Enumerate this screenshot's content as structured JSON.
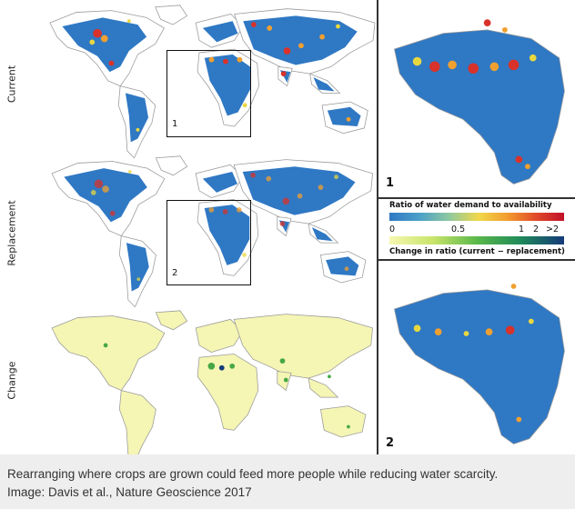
{
  "rows": {
    "current": "Current",
    "replacement": "Replacement",
    "change": "Change"
  },
  "zoom_labels": {
    "box1": "1",
    "box2": "2"
  },
  "insets": {
    "inset1": "1",
    "inset2": "2"
  },
  "legend": {
    "ratio_title": "Ratio of water demand to availability",
    "ratio_ticks": [
      "0",
      "0.5",
      "1",
      "2",
      ">2"
    ],
    "ratio_colors": [
      "#2f78c4",
      "#4aa0c8",
      "#8dc8a0",
      "#f0d84a",
      "#f29a2e",
      "#e04a2a",
      "#c0102a"
    ],
    "change_title": "Change in ratio (current − replacement)",
    "change_colors": [
      "#f7f7b0",
      "#c8e46a",
      "#5ab84a",
      "#1f8a5a",
      "#153a7a"
    ]
  },
  "map_colors": {
    "land_outline": "#9a9a9a",
    "water_ratio_land": "#2f78c4",
    "hotspot_red": "#d8322a",
    "hotspot_orange": "#f0a030",
    "hotspot_yellow": "#e8d840",
    "change_land": "#f5f5b4",
    "change_green": "#46a844",
    "change_dark": "#153a7a"
  },
  "caption": {
    "line1": "Rearranging where crops are grown could feed more people while reducing water scarcity.",
    "line2": "Image: Davis et al., Nature Geoscience 2017"
  }
}
